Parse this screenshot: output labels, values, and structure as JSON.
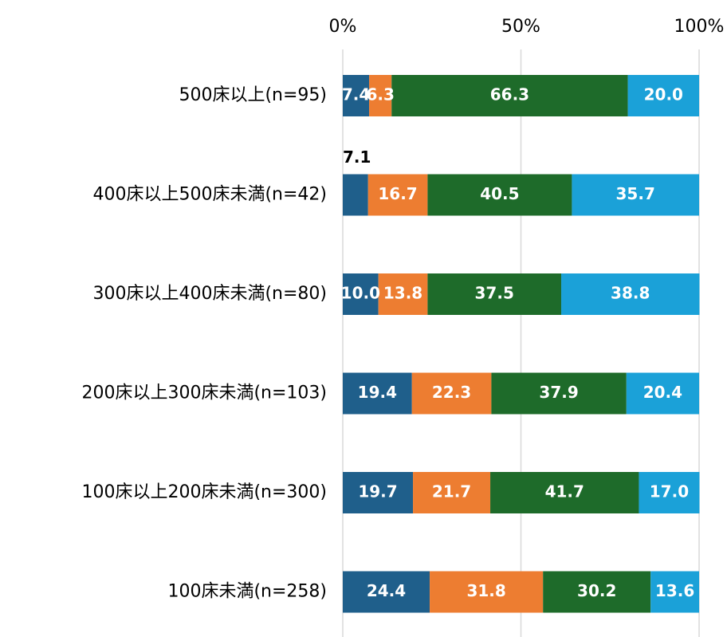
{
  "chart_data": {
    "type": "bar",
    "orientation": "horizontal",
    "stacked": true,
    "categories": [
      "500床以上(n=95)",
      "400床以上500床未満(n=42)",
      "300床以上400床未満(n=80)",
      "200床以上300床未満(n=103)",
      "100床以上200床未満(n=300)",
      "100床未満(n=258)"
    ],
    "series": [
      {
        "color": "#1f5f8b",
        "values": [
          7.4,
          7.1,
          10.0,
          19.4,
          19.7,
          24.4
        ]
      },
      {
        "color": "#ed7d31",
        "values": [
          6.3,
          16.7,
          13.8,
          22.3,
          21.7,
          31.8
        ]
      },
      {
        "color": "#1e6b2a",
        "values": [
          66.3,
          40.5,
          37.5,
          37.9,
          41.7,
          30.2
        ]
      },
      {
        "color": "#1ba1d8",
        "values": [
          20.0,
          35.7,
          38.8,
          20.4,
          17.0,
          13.6
        ]
      }
    ],
    "xlim": [
      0,
      100
    ],
    "x_ticks": [
      0,
      50,
      100
    ],
    "x_tick_labels": [
      "0%",
      "50%",
      "100%"
    ],
    "x_axis_position": "top",
    "grid": true,
    "legend": "none",
    "title": "",
    "xlabel": "",
    "ylabel": ""
  }
}
